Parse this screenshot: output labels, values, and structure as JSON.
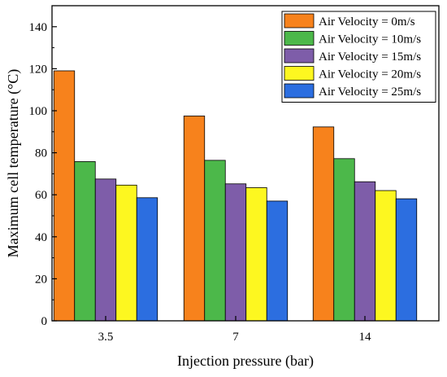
{
  "chart_data": {
    "type": "bar",
    "xlabel": "Injection pressure (bar)",
    "ylabel": "Maximum cell temperature (°C)",
    "categories": [
      "3.5",
      "7",
      "14"
    ],
    "ylim": [
      0,
      150
    ],
    "yticks": [
      "0",
      "20",
      "40",
      "60",
      "80",
      "100",
      "120",
      "140"
    ],
    "ytick_values": [
      0,
      20,
      40,
      60,
      80,
      100,
      120,
      140
    ],
    "grid": false,
    "legend_position": "top-right",
    "series": [
      {
        "name": "Air Velocity = 0m/s",
        "color": "#f7821c",
        "values": [
          119,
          97.5,
          92.3
        ]
      },
      {
        "name": "Air Velocity = 10m/s",
        "color": "#4cb84a",
        "values": [
          75.8,
          76.4,
          77.2
        ]
      },
      {
        "name": "Air Velocity = 15m/s",
        "color": "#7e5da9",
        "values": [
          67.5,
          65.2,
          66.2
        ]
      },
      {
        "name": "Air Velocity = 20m/s",
        "color": "#fdf720",
        "values": [
          64.6,
          63.4,
          62
        ]
      },
      {
        "name": "Air Velocity = 25m/s",
        "color": "#2c6ee0",
        "values": [
          58.6,
          57,
          58.1
        ]
      }
    ]
  }
}
